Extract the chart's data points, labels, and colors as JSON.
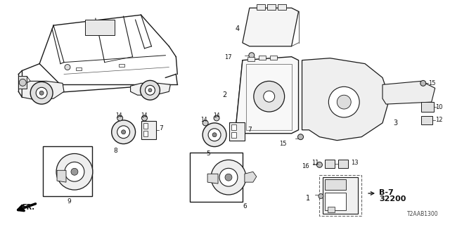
{
  "bg_color": "#ffffff",
  "fig_width": 6.4,
  "fig_height": 3.2,
  "dpi": 100,
  "ref_text": "T2AAB1300",
  "b7_label": "B-7",
  "b7_num": "32200",
  "line_color": "#1a1a1a",
  "label_color": "#111111"
}
